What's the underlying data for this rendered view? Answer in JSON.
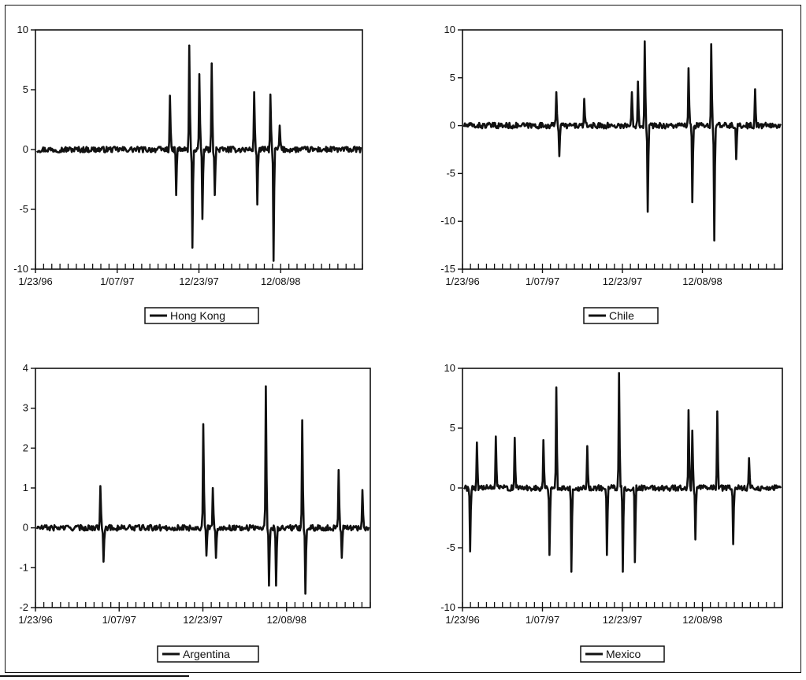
{
  "chart_data": [
    {
      "type": "line",
      "series": [
        {
          "name": "Hong Kong"
        }
      ],
      "x_tick_labels": [
        "1/23/96",
        "1/07/97",
        "12/23/97",
        "12/08/98"
      ],
      "y_ticks": [
        10,
        5,
        0,
        -5,
        -10
      ],
      "ylim": [
        -10,
        10
      ],
      "line_color": "#111111",
      "spikes": [
        {
          "x": 0.41,
          "y": 4.5
        },
        {
          "x": 0.43,
          "y": -3.8
        },
        {
          "x": 0.47,
          "y": 8.7
        },
        {
          "x": 0.48,
          "y": -8.2
        },
        {
          "x": 0.5,
          "y": 6.3
        },
        {
          "x": 0.51,
          "y": -5.8
        },
        {
          "x": 0.54,
          "y": 7.2
        },
        {
          "x": 0.55,
          "y": -3.8
        },
        {
          "x": 0.67,
          "y": 4.8
        },
        {
          "x": 0.68,
          "y": -4.6
        },
        {
          "x": 0.72,
          "y": 4.6
        },
        {
          "x": 0.73,
          "y": -9.3
        },
        {
          "x": 0.75,
          "y": 2.0
        }
      ]
    },
    {
      "type": "line",
      "series": [
        {
          "name": "Chile"
        }
      ],
      "x_tick_labels": [
        "1/23/96",
        "1/07/97",
        "12/23/97",
        "12/08/98"
      ],
      "y_ticks": [
        10,
        5,
        0,
        -5,
        -10,
        -15
      ],
      "ylim": [
        -15,
        10
      ],
      "line_color": "#111111",
      "spikes": [
        {
          "x": 0.29,
          "y": 3.5
        },
        {
          "x": 0.3,
          "y": -3.2
        },
        {
          "x": 0.38,
          "y": 2.8
        },
        {
          "x": 0.53,
          "y": 3.5
        },
        {
          "x": 0.55,
          "y": 4.6
        },
        {
          "x": 0.57,
          "y": 8.8
        },
        {
          "x": 0.58,
          "y": -9.0
        },
        {
          "x": 0.71,
          "y": 6.0
        },
        {
          "x": 0.72,
          "y": -8.0
        },
        {
          "x": 0.78,
          "y": 8.5
        },
        {
          "x": 0.79,
          "y": -12.0
        },
        {
          "x": 0.86,
          "y": -3.5
        },
        {
          "x": 0.92,
          "y": 3.8
        }
      ]
    },
    {
      "type": "line",
      "series": [
        {
          "name": "Argentina"
        }
      ],
      "x_tick_labels": [
        "1/23/96",
        "1/07/97",
        "12/23/97",
        "12/08/98"
      ],
      "y_ticks": [
        4,
        3,
        2,
        1,
        0,
        -1,
        -2
      ],
      "ylim": [
        -2,
        4
      ],
      "line_color": "#111111",
      "spikes": [
        {
          "x": 0.19,
          "y": 1.05
        },
        {
          "x": 0.2,
          "y": -0.85
        },
        {
          "x": 0.5,
          "y": 2.6
        },
        {
          "x": 0.51,
          "y": -0.7
        },
        {
          "x": 0.53,
          "y": 1.0
        },
        {
          "x": 0.54,
          "y": -0.75
        },
        {
          "x": 0.69,
          "y": 3.55
        },
        {
          "x": 0.7,
          "y": -1.45
        },
        {
          "x": 0.72,
          "y": -1.45
        },
        {
          "x": 0.8,
          "y": 2.7
        },
        {
          "x": 0.81,
          "y": -1.65
        },
        {
          "x": 0.91,
          "y": 1.45
        },
        {
          "x": 0.92,
          "y": -0.75
        },
        {
          "x": 0.98,
          "y": 0.95
        }
      ]
    },
    {
      "type": "line",
      "series": [
        {
          "name": "Mexico"
        }
      ],
      "x_tick_labels": [
        "1/23/96",
        "1/07/97",
        "12/23/97",
        "12/08/98"
      ],
      "y_ticks": [
        10,
        5,
        0,
        -5,
        -10
      ],
      "ylim": [
        -10,
        10
      ],
      "line_color": "#111111",
      "spikes": [
        {
          "x": 0.02,
          "y": -5.3
        },
        {
          "x": 0.04,
          "y": 3.8
        },
        {
          "x": 0.1,
          "y": 4.3
        },
        {
          "x": 0.16,
          "y": 4.2
        },
        {
          "x": 0.25,
          "y": 4.0
        },
        {
          "x": 0.27,
          "y": -5.6
        },
        {
          "x": 0.29,
          "y": 8.4
        },
        {
          "x": 0.34,
          "y": -7.0
        },
        {
          "x": 0.39,
          "y": 3.5
        },
        {
          "x": 0.45,
          "y": -5.6
        },
        {
          "x": 0.49,
          "y": 9.6
        },
        {
          "x": 0.5,
          "y": -7.0
        },
        {
          "x": 0.54,
          "y": -6.2
        },
        {
          "x": 0.71,
          "y": 6.5
        },
        {
          "x": 0.72,
          "y": 4.8
        },
        {
          "x": 0.73,
          "y": -4.3
        },
        {
          "x": 0.8,
          "y": 6.4
        },
        {
          "x": 0.85,
          "y": -4.7
        },
        {
          "x": 0.9,
          "y": 2.5
        }
      ]
    }
  ]
}
